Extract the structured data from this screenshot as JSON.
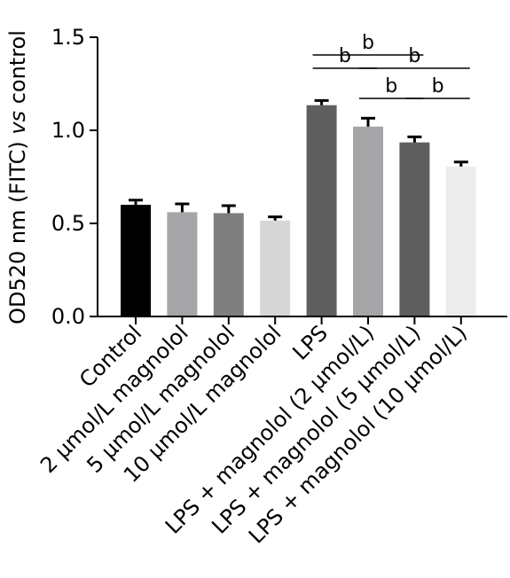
{
  "chart_data": {
    "type": "bar",
    "ylabel_prefix": "OD520 nm (FITC) ",
    "ylabel_vs": "vs",
    "ylabel_suffix": " control",
    "ylim": [
      0,
      1.5
    ],
    "yticks": [
      {
        "value": 0.0,
        "label": "0.0"
      },
      {
        "value": 0.5,
        "label": "0.5"
      },
      {
        "value": 1.0,
        "label": "1.0"
      },
      {
        "value": 1.5,
        "label": "1.5"
      }
    ],
    "categories": [
      "Control",
      "2 μmol/L magnolol",
      "5 μmol/L magnolol",
      "10 μmol/L magnolol",
      "LPS",
      "LPS + magnolol (2 μmol/L)",
      "LPS + magnolol (5 μmol/L)",
      "LPS + magnolol (10 μmol/L)"
    ],
    "values": [
      0.6,
      0.56,
      0.555,
      0.515,
      1.135,
      1.02,
      0.935,
      0.805
    ],
    "errors": [
      0.025,
      0.045,
      0.04,
      0.02,
      0.025,
      0.045,
      0.03,
      0.025
    ],
    "colors": [
      "#000000",
      "#a5a5a7",
      "#7f7f7f",
      "#d6d6d6",
      "#5f5f5f",
      "#a5a5a7",
      "#5f5f5f",
      "#ececec"
    ],
    "significance": [
      {
        "from": 4,
        "to": 6,
        "label": "b",
        "tier": 0
      },
      {
        "from": 4,
        "to": 5,
        "label": "b",
        "tier": 1
      },
      {
        "from": 5,
        "to": 7,
        "label": "b",
        "tier": 1
      },
      {
        "from": 5,
        "to": 6,
        "label": "b",
        "tier": 2
      },
      {
        "from": 6,
        "to": 7,
        "label": "b",
        "tier": 2
      }
    ],
    "grid": false,
    "legend": "none"
  }
}
